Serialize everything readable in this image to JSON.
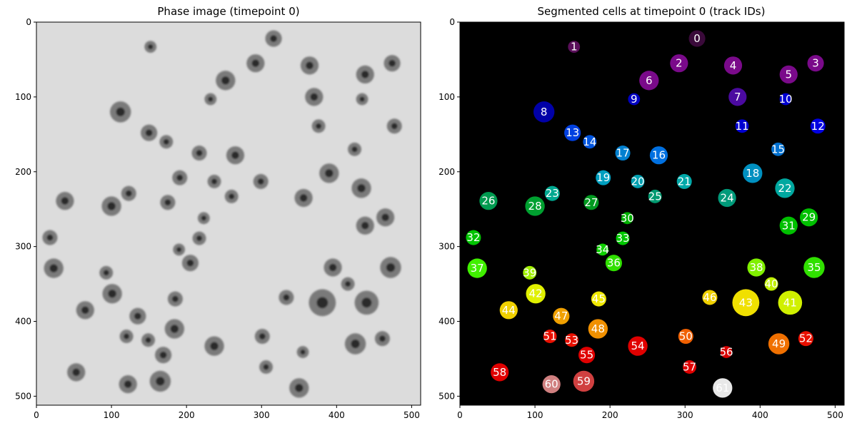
{
  "chart_data": [
    {
      "type": "image",
      "title": "Phase image (timepoint 0)",
      "xlim": [
        0,
        512
      ],
      "ylim": [
        512,
        0
      ],
      "xticks": [
        0,
        100,
        200,
        300,
        400,
        500
      ],
      "yticks": [
        0,
        100,
        200,
        300,
        400,
        500
      ],
      "background_color": "#dcdcdc",
      "cell_ring_color": "#7a7a7a",
      "cell_core_color": "#2a2a2a"
    },
    {
      "type": "image",
      "title": "Segmented cells at timepoint 0 (track IDs)",
      "xlim": [
        0,
        512
      ],
      "ylim": [
        512,
        0
      ],
      "xticks": [
        0,
        100,
        200,
        300,
        400,
        500
      ],
      "yticks": [
        0,
        100,
        200,
        300,
        400,
        500
      ],
      "background_color": "#000000",
      "label_color": "#ffffff"
    }
  ],
  "cells": [
    {
      "id": "0",
      "x": 316,
      "y": 22,
      "r": 11,
      "color": "#3a0a3a"
    },
    {
      "id": "1",
      "x": 152,
      "y": 33,
      "r": 8,
      "color": "#5a0f5a"
    },
    {
      "id": "2",
      "x": 292,
      "y": 55,
      "r": 12,
      "color": "#7a0a8a"
    },
    {
      "id": "4",
      "x": 364,
      "y": 58,
      "r": 12,
      "color": "#7a0a8a"
    },
    {
      "id": "3",
      "x": 474,
      "y": 55,
      "r": 11,
      "color": "#7a0a8a"
    },
    {
      "id": "5",
      "x": 438,
      "y": 70,
      "r": 12,
      "color": "#7a0a8a"
    },
    {
      "id": "6",
      "x": 252,
      "y": 78,
      "r": 13,
      "color": "#7a0a8a"
    },
    {
      "id": "7",
      "x": 370,
      "y": 100,
      "r": 12,
      "color": "#4b0aa0"
    },
    {
      "id": "8",
      "x": 112,
      "y": 120,
      "r": 14,
      "color": "#0000a8"
    },
    {
      "id": "9",
      "x": 232,
      "y": 103,
      "r": 8,
      "color": "#0000c0"
    },
    {
      "id": "10",
      "x": 434,
      "y": 103,
      "r": 8,
      "color": "#0000d0"
    },
    {
      "id": "11",
      "x": 376,
      "y": 139,
      "r": 9,
      "color": "#0000d0"
    },
    {
      "id": "12",
      "x": 477,
      "y": 139,
      "r": 10,
      "color": "#0000e0"
    },
    {
      "id": "13",
      "x": 150,
      "y": 148,
      "r": 11,
      "color": "#0040e0"
    },
    {
      "id": "14",
      "x": 173,
      "y": 160,
      "r": 9,
      "color": "#0055e0"
    },
    {
      "id": "15",
      "x": 424,
      "y": 170,
      "r": 9,
      "color": "#0070d0"
    },
    {
      "id": "16",
      "x": 265,
      "y": 178,
      "r": 12,
      "color": "#0070e0"
    },
    {
      "id": "17",
      "x": 217,
      "y": 175,
      "r": 10,
      "color": "#0080d0"
    },
    {
      "id": "18",
      "x": 390,
      "y": 202,
      "r": 13,
      "color": "#0090c0"
    },
    {
      "id": "19",
      "x": 191,
      "y": 208,
      "r": 10,
      "color": "#00a0c0"
    },
    {
      "id": "20",
      "x": 237,
      "y": 213,
      "r": 9,
      "color": "#00a0b0"
    },
    {
      "id": "21",
      "x": 299,
      "y": 213,
      "r": 10,
      "color": "#00a8a8"
    },
    {
      "id": "22",
      "x": 433,
      "y": 222,
      "r": 13,
      "color": "#00a8a0"
    },
    {
      "id": "23",
      "x": 123,
      "y": 229,
      "r": 10,
      "color": "#00a890"
    },
    {
      "id": "24",
      "x": 356,
      "y": 235,
      "r": 12,
      "color": "#009a7a"
    },
    {
      "id": "25",
      "x": 260,
      "y": 233,
      "r": 9,
      "color": "#009a70"
    },
    {
      "id": "26",
      "x": 38,
      "y": 239,
      "r": 12,
      "color": "#009a50"
    },
    {
      "id": "27",
      "x": 175,
      "y": 241,
      "r": 10,
      "color": "#009a20"
    },
    {
      "id": "28",
      "x": 100,
      "y": 246,
      "r": 13,
      "color": "#00a030"
    },
    {
      "id": "29",
      "x": 465,
      "y": 261,
      "r": 12,
      "color": "#00c000"
    },
    {
      "id": "30",
      "x": 223,
      "y": 262,
      "r": 8,
      "color": "#00b000"
    },
    {
      "id": "31",
      "x": 438,
      "y": 272,
      "r": 12,
      "color": "#00c000"
    },
    {
      "id": "32",
      "x": 18,
      "y": 288,
      "r": 10,
      "color": "#00c400"
    },
    {
      "id": "33",
      "x": 217,
      "y": 289,
      "r": 9,
      "color": "#00c800"
    },
    {
      "id": "34",
      "x": 190,
      "y": 304,
      "r": 8,
      "color": "#10d000"
    },
    {
      "id": "36",
      "x": 205,
      "y": 322,
      "r": 11,
      "color": "#30e000"
    },
    {
      "id": "35",
      "x": 472,
      "y": 328,
      "r": 14,
      "color": "#30e000"
    },
    {
      "id": "37",
      "x": 23,
      "y": 329,
      "r": 13,
      "color": "#40f000"
    },
    {
      "id": "38",
      "x": 395,
      "y": 328,
      "r": 12,
      "color": "#80f000"
    },
    {
      "id": "39",
      "x": 93,
      "y": 335,
      "r": 9,
      "color": "#a0f000"
    },
    {
      "id": "40",
      "x": 415,
      "y": 350,
      "r": 9,
      "color": "#c0f000"
    },
    {
      "id": "41",
      "x": 440,
      "y": 375,
      "r": 16,
      "color": "#d0f000"
    },
    {
      "id": "42",
      "x": 101,
      "y": 363,
      "r": 13,
      "color": "#e0f000"
    },
    {
      "id": "45",
      "x": 185,
      "y": 370,
      "r": 10,
      "color": "#f0e800"
    },
    {
      "id": "46",
      "x": 333,
      "y": 368,
      "r": 10,
      "color": "#f0d000"
    },
    {
      "id": "43",
      "x": 381,
      "y": 375,
      "r": 18,
      "color": "#f0e000"
    },
    {
      "id": "44",
      "x": 65,
      "y": 385,
      "r": 12,
      "color": "#f0d000"
    },
    {
      "id": "47",
      "x": 135,
      "y": 393,
      "r": 11,
      "color": "#f0a000"
    },
    {
      "id": "48",
      "x": 184,
      "y": 410,
      "r": 13,
      "color": "#f09000"
    },
    {
      "id": "49",
      "x": 425,
      "y": 430,
      "r": 14,
      "color": "#f07000"
    },
    {
      "id": "50",
      "x": 301,
      "y": 420,
      "r": 10,
      "color": "#f06000"
    },
    {
      "id": "51",
      "x": 120,
      "y": 420,
      "r": 9,
      "color": "#e81000"
    },
    {
      "id": "52",
      "x": 461,
      "y": 423,
      "r": 10,
      "color": "#e81000"
    },
    {
      "id": "53",
      "x": 149,
      "y": 425,
      "r": 9,
      "color": "#e81000"
    },
    {
      "id": "54",
      "x": 237,
      "y": 433,
      "r": 13,
      "color": "#e00000"
    },
    {
      "id": "56",
      "x": 355,
      "y": 441,
      "r": 8,
      "color": "#d80000"
    },
    {
      "id": "55",
      "x": 169,
      "y": 445,
      "r": 11,
      "color": "#e00000"
    },
    {
      "id": "57",
      "x": 306,
      "y": 461,
      "r": 9,
      "color": "#e00000"
    },
    {
      "id": "58",
      "x": 53,
      "y": 468,
      "r": 12,
      "color": "#e00000"
    },
    {
      "id": "59",
      "x": 165,
      "y": 480,
      "r": 14,
      "color": "#d04040"
    },
    {
      "id": "60",
      "x": 122,
      "y": 484,
      "r": 12,
      "color": "#d08080"
    },
    {
      "id": "61",
      "x": 350,
      "y": 489,
      "r": 13,
      "color": "#e8e8e8"
    }
  ]
}
